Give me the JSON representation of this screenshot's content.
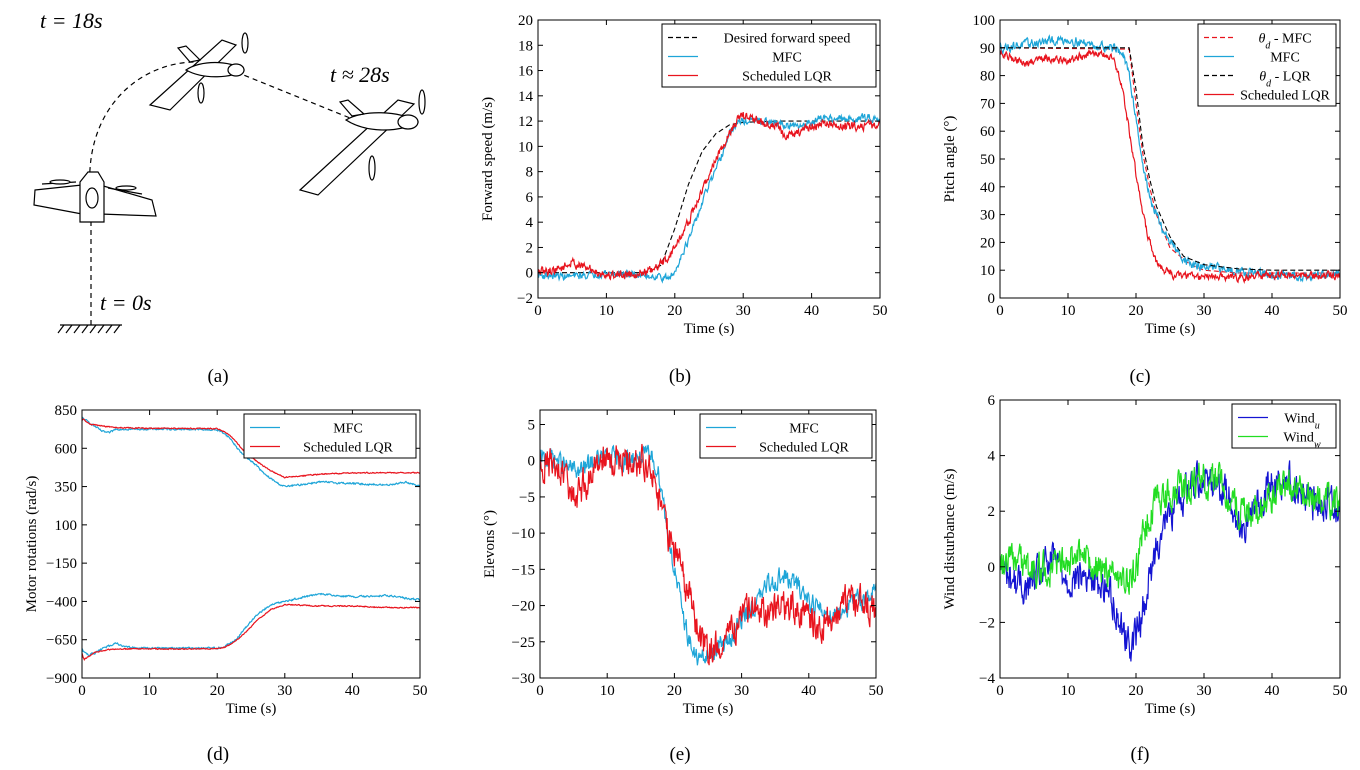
{
  "figure": {
    "captions": [
      "(a)",
      "(b)",
      "(c)",
      "(d)",
      "(e)",
      "(f)"
    ],
    "illustration": {
      "labels": [
        "t = 18s",
        "t ≈ 28s",
        "t = 0s"
      ],
      "icons": [
        "tailsitter-aircraft-icon",
        "ground-hatch-icon",
        "trajectory-path-icon"
      ]
    }
  },
  "colors": {
    "mfc": "#1ea5d8",
    "lqr": "#e8141e",
    "desired": "#000000",
    "wind_u": "#1414d2",
    "wind_w": "#22dd22"
  },
  "chart_data": [
    {
      "id": "b",
      "type": "line",
      "title": "",
      "xlabel": "Time (s)",
      "ylabel": "Forward speed (m/s)",
      "xlim": [
        0,
        50
      ],
      "ylim": [
        -2,
        20
      ],
      "xticks": [
        0,
        10,
        20,
        30,
        40,
        50
      ],
      "yticks": [
        -2,
        0,
        2,
        4,
        6,
        8,
        10,
        12,
        14,
        16,
        18,
        20
      ],
      "legend": "top-right",
      "grid": false,
      "series": [
        {
          "name": "Desired forward speed",
          "style": "dashed",
          "color": "#000000",
          "x": [
            0,
            16,
            18,
            20,
            22,
            24,
            26,
            28,
            30,
            35,
            40,
            45,
            50
          ],
          "y": [
            0,
            0,
            0.6,
            3.5,
            7,
            9.6,
            11,
            11.7,
            11.9,
            12,
            12,
            12,
            12
          ]
        },
        {
          "name": "MFC",
          "style": "solid",
          "color": "#1ea5d8",
          "noise": 0.25,
          "x": [
            0,
            5,
            10,
            15,
            18,
            19,
            20,
            21,
            22,
            24,
            25,
            26,
            27,
            28,
            29,
            30,
            32,
            35,
            38,
            40,
            42,
            45,
            48,
            50
          ],
          "y": [
            -0.2,
            -0.3,
            0,
            -0.2,
            -0.3,
            -0.5,
            0,
            1.5,
            2.5,
            5.5,
            7,
            8,
            9.5,
            11,
            11.8,
            12,
            12,
            11.8,
            11.5,
            12,
            12.3,
            12.1,
            12.3,
            12.2
          ]
        },
        {
          "name": "Scheduled LQR",
          "style": "solid",
          "color": "#e8141e",
          "noise": 0.3,
          "x": [
            0,
            3,
            5,
            8,
            10,
            15,
            17,
            19,
            20,
            22,
            24,
            26,
            28,
            29,
            30,
            31,
            33,
            35,
            36,
            38,
            40,
            42,
            45,
            48,
            50
          ],
          "y": [
            0,
            0.3,
            0.8,
            0.2,
            -0.2,
            0,
            0.2,
            1.2,
            2,
            4,
            6.5,
            9,
            11,
            12,
            12.4,
            12.3,
            11.8,
            11.6,
            10.8,
            11,
            11.6,
            11.8,
            11.5,
            11.7,
            11.6
          ]
        }
      ]
    },
    {
      "id": "c",
      "type": "line",
      "title": "",
      "xlabel": "Time (s)",
      "ylabel": "Pitch angle (°)",
      "xlim": [
        0,
        50
      ],
      "ylim": [
        0,
        100
      ],
      "xticks": [
        0,
        10,
        20,
        30,
        40,
        50
      ],
      "yticks": [
        0,
        10,
        20,
        30,
        40,
        50,
        60,
        70,
        80,
        90,
        100
      ],
      "legend": "top-right",
      "grid": false,
      "series": [
        {
          "name": "θ_d - MFC",
          "label_parts": [
            "θ",
            "d",
            " - MFC"
          ],
          "style": "dashed",
          "color": "#e8141e",
          "x": [
            0,
            19,
            20,
            21,
            22,
            23,
            25,
            28,
            30,
            35,
            40,
            45,
            50
          ],
          "y": [
            90,
            89.5,
            70,
            52,
            40,
            30,
            18,
            12,
            10,
            9,
            9,
            9,
            9
          ]
        },
        {
          "name": "MFC",
          "style": "solid",
          "color": "#1ea5d8",
          "noise": 1.4,
          "x": [
            0,
            3,
            6,
            10,
            14,
            17,
            18,
            19,
            20,
            21,
            22,
            23,
            24,
            26,
            28,
            30,
            35,
            40,
            45,
            50
          ],
          "y": [
            90,
            91,
            92,
            93,
            91,
            90,
            88,
            80,
            65,
            48,
            36,
            30,
            24,
            17,
            12,
            11,
            10,
            8,
            8,
            9
          ]
        },
        {
          "name": "θ_d - LQR",
          "label_parts": [
            "θ",
            "d",
            " - LQR"
          ],
          "style": "dashed",
          "color": "#000000",
          "x": [
            0,
            19,
            20,
            21,
            22,
            23,
            25,
            27,
            30,
            35,
            40,
            45,
            50
          ],
          "y": [
            90,
            90,
            75,
            55,
            43,
            33,
            22,
            15,
            12,
            10.5,
            10,
            10,
            10
          ]
        },
        {
          "name": "Scheduled LQR",
          "style": "solid",
          "color": "#e8141e",
          "noise": 1.2,
          "x": [
            0,
            2,
            4,
            6,
            8,
            10,
            12,
            14,
            16,
            17,
            18,
            19,
            20,
            21,
            22,
            23,
            24,
            26,
            30,
            35,
            40,
            45,
            50
          ],
          "y": [
            88,
            86,
            84,
            87,
            86,
            85,
            87,
            88,
            87,
            84,
            75,
            60,
            45,
            30,
            20,
            13,
            10,
            8,
            8,
            7.5,
            8,
            8,
            8
          ]
        }
      ]
    },
    {
      "id": "d",
      "type": "line",
      "title": "",
      "xlabel": "Time (s)",
      "ylabel": "Motor rotations (rad/s)",
      "xlim": [
        0,
        50
      ],
      "ylim": [
        -900,
        850
      ],
      "xticks": [
        0,
        10,
        20,
        30,
        40,
        50
      ],
      "yticks": [
        -900,
        -650,
        -400,
        -150,
        100,
        350,
        600,
        850
      ],
      "legend": "top-right",
      "grid": false,
      "series": [
        {
          "name": "MFC",
          "style": "solid",
          "color": "#1ea5d8",
          "noise": 5,
          "x": [
            0,
            0.3,
            1,
            2,
            3,
            4,
            5,
            7,
            10,
            15,
            20,
            21,
            22,
            23,
            24,
            25,
            26,
            27,
            28,
            29,
            30,
            32,
            35,
            40,
            45,
            48,
            50
          ],
          "y": [
            800,
            790,
            770,
            740,
            710,
            700,
            725,
            725,
            725,
            725,
            720,
            700,
            660,
            600,
            550,
            520,
            480,
            430,
            400,
            370,
            350,
            360,
            380,
            370,
            360,
            380,
            350
          ]
        },
        {
          "name": "Scheduled LQR",
          "style": "solid",
          "color": "#e8141e",
          "noise": 3,
          "x": [
            0,
            0.2,
            1,
            3,
            5,
            10,
            15,
            20,
            21,
            22,
            23,
            24,
            26,
            28,
            30,
            35,
            40,
            45,
            50
          ],
          "y": [
            780,
            790,
            760,
            745,
            735,
            730,
            730,
            728,
            710,
            680,
            630,
            580,
            510,
            450,
            410,
            430,
            440,
            440,
            440
          ]
        },
        {
          "name": "",
          "style": "solid",
          "color": "#1ea5d8",
          "noise": 5,
          "x": [
            0,
            0.3,
            1,
            2,
            3,
            4,
            5,
            6,
            8,
            10,
            15,
            20,
            21,
            22,
            23,
            24,
            25,
            26,
            28,
            30,
            32,
            35,
            40,
            45,
            48,
            50
          ],
          "y": [
            -710,
            -730,
            -750,
            -735,
            -710,
            -690,
            -670,
            -690,
            -705,
            -705,
            -705,
            -705,
            -695,
            -670,
            -640,
            -580,
            -530,
            -480,
            -420,
            -400,
            -380,
            -350,
            -370,
            -360,
            -380,
            -390
          ]
        },
        {
          "name": "",
          "style": "solid",
          "color": "#e8141e",
          "noise": 3,
          "x": [
            0,
            0.3,
            1,
            2,
            4,
            6,
            10,
            15,
            20,
            21,
            22,
            23,
            24,
            26,
            28,
            30,
            35,
            40,
            45,
            50
          ],
          "y": [
            -740,
            -780,
            -760,
            -730,
            -715,
            -710,
            -710,
            -710,
            -708,
            -700,
            -680,
            -650,
            -610,
            -520,
            -450,
            -420,
            -430,
            -430,
            -440,
            -440
          ]
        }
      ]
    },
    {
      "id": "e",
      "type": "line",
      "title": "",
      "xlabel": "Time (s)",
      "ylabel": "Elevons (°)",
      "xlim": [
        0,
        50
      ],
      "ylim": [
        -30,
        7
      ],
      "xticks": [
        0,
        10,
        20,
        30,
        40,
        50
      ],
      "yticks": [
        -30,
        -25,
        -20,
        -15,
        -10,
        -5,
        0,
        5
      ],
      "legend": "top-right",
      "grid": false,
      "series": [
        {
          "name": "MFC",
          "style": "solid",
          "color": "#1ea5d8",
          "noise": 1.2,
          "x": [
            0,
            2,
            4,
            6,
            8,
            10,
            12,
            14,
            16,
            17,
            18,
            19,
            20,
            21,
            22,
            23,
            24,
            25,
            26,
            28,
            30,
            32,
            34,
            36,
            38,
            40,
            42,
            44,
            46,
            48,
            50
          ],
          "y": [
            0,
            0.5,
            -1,
            -1.5,
            0,
            0.5,
            0,
            0.5,
            0.5,
            0,
            -3,
            -10,
            -15,
            -20,
            -24,
            -27,
            -27.5,
            -27,
            -26,
            -25,
            -22,
            -20,
            -17,
            -16,
            -17,
            -19,
            -21,
            -21,
            -20,
            -19,
            -18
          ]
        },
        {
          "name": "Scheduled LQR",
          "style": "solid",
          "color": "#e8141e",
          "noise": 2,
          "x": [
            0,
            2,
            4,
            5,
            6,
            7,
            8,
            9,
            10,
            12,
            14,
            16,
            17,
            18,
            19,
            20,
            21,
            22,
            23,
            24,
            25,
            26,
            28,
            30,
            32,
            34,
            36,
            38,
            40,
            42,
            44,
            46,
            48,
            50
          ],
          "y": [
            0,
            -1,
            -3,
            -5,
            -4,
            -3,
            -1,
            1,
            0,
            0,
            -0.5,
            0,
            -3,
            -7,
            -10,
            -12,
            -15,
            -18,
            -22,
            -25,
            -26,
            -26,
            -24,
            -22,
            -20,
            -21,
            -20,
            -20.5,
            -22,
            -23,
            -21,
            -19,
            -20,
            -21
          ]
        }
      ]
    },
    {
      "id": "f",
      "type": "line",
      "title": "",
      "xlabel": "Time (s)",
      "ylabel": "Wind disturbance (m/s)",
      "xlim": [
        0,
        50
      ],
      "ylim": [
        -4,
        6
      ],
      "xticks": [
        0,
        10,
        20,
        30,
        40,
        50
      ],
      "yticks": [
        -4,
        -2,
        0,
        2,
        4,
        6
      ],
      "legend": "top-right",
      "grid": false,
      "series": [
        {
          "name": "Wind_u",
          "label_parts": [
            "Wind",
            "u",
            ""
          ],
          "style": "solid",
          "color": "#1414d2",
          "noise": 0.55,
          "x": [
            0,
            2,
            4,
            6,
            8,
            10,
            12,
            14,
            16,
            17,
            18,
            19,
            20,
            21,
            22,
            23,
            24,
            26,
            28,
            30,
            32,
            34,
            35,
            36,
            38,
            40,
            42,
            44,
            46,
            48,
            50
          ],
          "y": [
            0,
            -0.5,
            -0.8,
            -0.2,
            0.3,
            -0.5,
            -0.3,
            -0.5,
            -0.8,
            -1.5,
            -2.2,
            -2.8,
            -2.5,
            -1.5,
            -0.5,
            0.8,
            1.5,
            2.2,
            3,
            3.3,
            3,
            2.5,
            1.5,
            1.5,
            2.2,
            3,
            3.2,
            2.8,
            2.2,
            2.3,
            2.3
          ]
        },
        {
          "name": "Wind_w",
          "label_parts": [
            "Wind",
            "w",
            ""
          ],
          "style": "solid",
          "color": "#22dd22",
          "noise": 0.55,
          "x": [
            0,
            2,
            4,
            6,
            8,
            10,
            12,
            14,
            16,
            18,
            19,
            20,
            21,
            22,
            23,
            24,
            26,
            28,
            30,
            32,
            34,
            36,
            38,
            40,
            42,
            44,
            46,
            48,
            50
          ],
          "y": [
            0,
            0.2,
            0,
            -0.2,
            0,
            0.3,
            0.2,
            0,
            -0.2,
            -0.5,
            -0.3,
            0,
            1,
            2,
            2.5,
            2.5,
            2.8,
            3,
            3.2,
            3,
            2.5,
            2,
            2,
            2.5,
            3,
            2.6,
            2.3,
            2.4,
            2.2
          ]
        }
      ]
    }
  ]
}
